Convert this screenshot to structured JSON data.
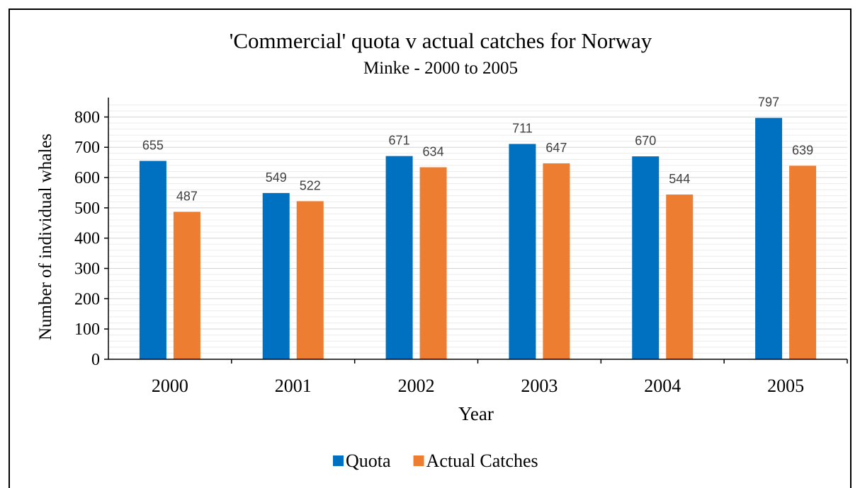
{
  "chart_data": {
    "type": "bar",
    "title": "'Commercial' quota v actual catches for Norway",
    "subtitle": "Minke - 2000 to 2005",
    "xlabel": "Year",
    "ylabel": "Number of individual whales",
    "categories": [
      "2000",
      "2001",
      "2002",
      "2003",
      "2004",
      "2005"
    ],
    "series": [
      {
        "name": "Quota",
        "color": "#0070C0",
        "values": [
          655,
          549,
          671,
          711,
          670,
          797
        ]
      },
      {
        "name": "Actual Catches",
        "color": "#ED7D31",
        "values": [
          487,
          522,
          634,
          647,
          544,
          639
        ]
      }
    ],
    "ylim": [
      0,
      850
    ],
    "yticks": [
      "0",
      "100",
      "200",
      "300",
      "400",
      "500",
      "600",
      "700",
      "800"
    ],
    "grid": true,
    "legend_position": "bottom"
  }
}
